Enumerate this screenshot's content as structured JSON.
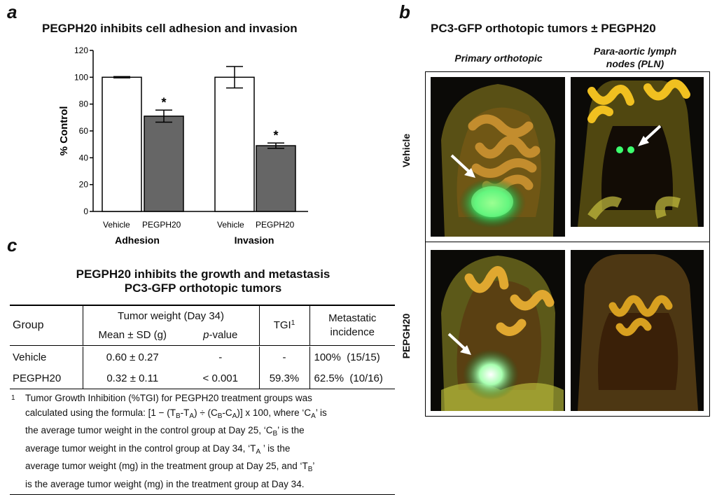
{
  "panel_a": {
    "label": "a",
    "title": "PEGPH20 inhibits cell adhesion and invasion",
    "ylabel": "% Control",
    "yticks": [
      "0",
      "20",
      "40",
      "60",
      "80",
      "100",
      "120"
    ],
    "groups": [
      {
        "name": "Adhesion",
        "bars": [
          {
            "label": "Vehicle"
          },
          {
            "label": "PEGPH20"
          }
        ]
      },
      {
        "name": "Invasion",
        "bars": [
          {
            "label": "Vehicle"
          },
          {
            "label": "PEGPH20"
          }
        ]
      }
    ],
    "significance_mark": "*",
    "colors": {
      "vehicle": "#ffffff",
      "pegph20": "#666666",
      "stroke": "#000000"
    }
  },
  "chart_data": {
    "type": "bar",
    "title": "PEGPH20 inhibits cell adhesion and invasion",
    "xlabel": "",
    "ylabel": "% Control",
    "ylim": [
      0,
      120
    ],
    "grid": false,
    "categories": [
      "Adhesion",
      "Invasion"
    ],
    "series": [
      {
        "name": "Vehicle",
        "values": [
          100,
          100
        ],
        "error": [
          0.5,
          8
        ]
      },
      {
        "name": "PEGPH20",
        "values": [
          71,
          49
        ],
        "error": [
          4.5,
          2
        ]
      }
    ],
    "annotations": [
      "*",
      "*"
    ]
  },
  "panel_b": {
    "label": "b",
    "title": "PC3-GFP orthotopic tumors ± PEGPH20",
    "col1": "Primary orthotopic",
    "col2_line1": "Para-aortic lymph",
    "col2_line2": "nodes (PLN)",
    "row1": "Vehicle",
    "row2": "PEPGH20"
  },
  "panel_c": {
    "label": "c",
    "title_line1": "PEGPH20 inhibits the growth and metastasis",
    "title_line2": "PC3-GFP orthotopic tumors",
    "header": {
      "group": "Group",
      "tumor_weight": "Tumor weight (Day 34)",
      "mean_sd": "Mean ± SD (g)",
      "p_prefix": "p",
      "p_suffix": "-value",
      "tgi": "TGI",
      "tgi_sup": "1",
      "metastatic_line1": "Metastatic",
      "metastatic_line2": "incidence"
    },
    "rows": [
      {
        "group": "Vehicle",
        "mean_sd": "0.60 ± 0.27",
        "p": "-",
        "tgi": "-",
        "incidence": "100%  (15/15)"
      },
      {
        "group": "PEGPH20",
        "mean_sd": "0.32 ± 0.11",
        "p": "< 0.001",
        "tgi": "59.3%",
        "incidence": "62.5%  (10/16)"
      }
    ],
    "footnote": {
      "marker": "1",
      "line1": "Tumor Growth Inhibition (%TGI) for PEGPH20 treatment groups was",
      "line2_a": "calculated using the formula: [1 − (T",
      "line2_b": "-T",
      "line2_c": ") ÷ (C",
      "line2_d": "-C",
      "line2_e": ")] x 100, where ‘C",
      "line2_f": "’ is",
      "line3_a": "the average tumor weight in the control group at Day 25, ‘C",
      "line3_b": "’ is the",
      "line4": "average tumor weight in the control group at Day 34, ‘T",
      "line4_b": " ’ is the",
      "line5": "average tumor weight (mg) in the treatment group at Day 25, and ‘T",
      "line5_b": "’",
      "line6": "is the average tumor weight (mg) in the treatment group at Day 34.",
      "sub_B": "B",
      "sub_A": "A"
    }
  }
}
